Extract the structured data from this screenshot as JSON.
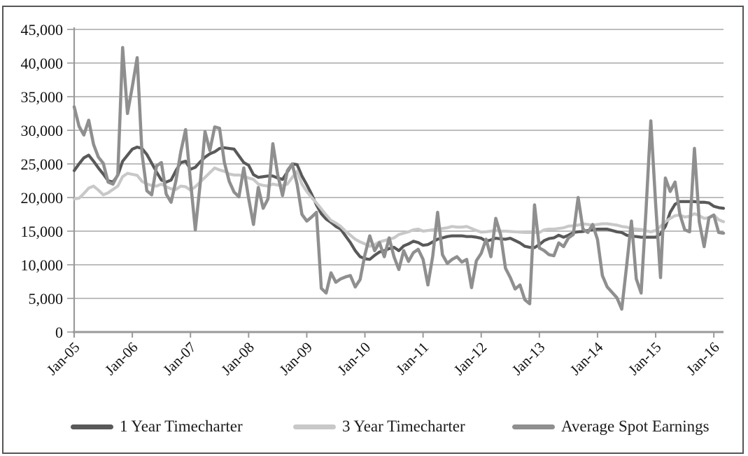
{
  "chart_data": {
    "type": "line",
    "grid": true,
    "legend_position": "bottom",
    "ylim": [
      0,
      45000
    ],
    "ytick_step": 5000,
    "ytick_labels": [
      "0",
      "5,000",
      "10,000",
      "15,000",
      "20,000",
      "25,000",
      "30,000",
      "35,000",
      "40,000",
      "45,000"
    ],
    "x_start": "Jan-05",
    "x_frequency": "monthly",
    "n_points": 135,
    "x_tick_labels": [
      "Jan-05",
      "Jan-06",
      "Jan-07",
      "Jan-08",
      "Jan-09",
      "Jan-10",
      "Jan-11",
      "Jan-12",
      "Jan-13",
      "Jan-14",
      "Jan-15",
      "Jan-16"
    ],
    "x_tick_indices": [
      0,
      12,
      24,
      36,
      48,
      60,
      72,
      84,
      96,
      108,
      120,
      132
    ],
    "grid_color": "#a8a8a8",
    "axis_color": "#9a9a9a",
    "text_color": "#111111",
    "series": [
      {
        "name": "1 Year Timecharter",
        "color": "#595959",
        "width": 4.2,
        "values": [
          24000,
          25000,
          25900,
          26300,
          25400,
          24400,
          23500,
          22500,
          22300,
          23300,
          25400,
          26300,
          27200,
          27500,
          27300,
          26400,
          25100,
          23800,
          22600,
          22300,
          22600,
          24000,
          25200,
          25400,
          24200,
          24500,
          25300,
          26000,
          26500,
          26800,
          27300,
          27400,
          27300,
          27200,
          26200,
          25200,
          24800,
          23400,
          23000,
          23100,
          23200,
          23200,
          22900,
          22700,
          23800,
          25000,
          24900,
          23200,
          21900,
          20500,
          18900,
          17600,
          16800,
          16300,
          15700,
          15300,
          14300,
          13300,
          12100,
          11200,
          10900,
          10800,
          11400,
          11900,
          12100,
          12400,
          12600,
          12100,
          12800,
          13100,
          13500,
          13300,
          12900,
          13000,
          13400,
          13800,
          14000,
          14200,
          14300,
          14300,
          14300,
          14200,
          14200,
          14100,
          13950,
          13500,
          13700,
          13950,
          13850,
          13800,
          13950,
          13600,
          13250,
          12750,
          12600,
          12550,
          13000,
          13600,
          13900,
          14000,
          14400,
          14100,
          14400,
          14800,
          14900,
          14950,
          15100,
          15200,
          15300,
          15300,
          15300,
          15100,
          14900,
          14800,
          14400,
          14250,
          14200,
          14100,
          14100,
          14100,
          14100,
          14600,
          15700,
          17800,
          19000,
          19400,
          19400,
          19400,
          19400,
          19300,
          19300,
          19200,
          18700,
          18500,
          18400
        ]
      },
      {
        "name": "3 Year Timecharter",
        "color": "#c8c8c8",
        "width": 4.2,
        "values": [
          19800,
          19900,
          20600,
          21400,
          21700,
          21100,
          20400,
          20700,
          21200,
          21700,
          23100,
          23600,
          23450,
          23300,
          22400,
          22000,
          21800,
          21700,
          22000,
          21600,
          21300,
          21200,
          21700,
          21600,
          21100,
          21600,
          22300,
          23000,
          23700,
          24400,
          24100,
          23900,
          23500,
          23350,
          23350,
          23200,
          22900,
          22700,
          22000,
          21800,
          21700,
          22000,
          21850,
          21800,
          22000,
          23000,
          23900,
          22000,
          20900,
          20000,
          19200,
          18300,
          17400,
          16600,
          16200,
          15700,
          15000,
          14400,
          13800,
          13400,
          13100,
          12750,
          13000,
          13400,
          13600,
          13800,
          14000,
          14500,
          14700,
          14900,
          15200,
          15300,
          15000,
          15100,
          15200,
          15300,
          15400,
          15500,
          15700,
          15600,
          15600,
          15700,
          15400,
          15100,
          14850,
          14900,
          15000,
          15100,
          15000,
          15000,
          14950,
          14900,
          14850,
          14800,
          14800,
          14800,
          14800,
          15200,
          15300,
          15300,
          15400,
          15500,
          15750,
          15800,
          15900,
          16100,
          16000,
          15900,
          16000,
          16100,
          16100,
          16000,
          15900,
          15700,
          15600,
          15400,
          15300,
          15250,
          15050,
          14900,
          15100,
          15700,
          16400,
          16900,
          17300,
          17400,
          17100,
          17200,
          17600,
          17300,
          16900,
          17000,
          17400,
          16700,
          16400
        ]
      },
      {
        "name": "Average Spot Earnings",
        "color": "#8f8f8f",
        "width": 4.5,
        "values": [
          33500,
          30600,
          29300,
          31500,
          27900,
          26000,
          25100,
          22300,
          22000,
          23400,
          42300,
          32500,
          36500,
          40800,
          26500,
          21000,
          20400,
          24700,
          25200,
          20500,
          19300,
          22500,
          26800,
          30100,
          22500,
          15200,
          22000,
          29800,
          27000,
          30500,
          30300,
          25200,
          22400,
          20800,
          20100,
          24400,
          19900,
          16000,
          21500,
          18400,
          19800,
          28000,
          23400,
          20300,
          24000,
          25000,
          22000,
          17500,
          16500,
          17100,
          17800,
          6500,
          5800,
          8800,
          7400,
          7900,
          8200,
          8400,
          6700,
          7800,
          11500,
          14300,
          12100,
          13300,
          11200,
          14000,
          11200,
          9300,
          12100,
          10500,
          11800,
          12300,
          10800,
          7000,
          11300,
          17800,
          11500,
          10200,
          10800,
          11200,
          10400,
          10800,
          6600,
          10600,
          11700,
          13800,
          11200,
          16900,
          14500,
          9500,
          8100,
          6400,
          7000,
          4800,
          4200,
          18900,
          12500,
          12100,
          11500,
          11350,
          13250,
          12700,
          14000,
          14500,
          20000,
          15300,
          14800,
          16000,
          13750,
          8400,
          6700,
          5900,
          5100,
          3400,
          9800,
          16500,
          7900,
          5800,
          18000,
          31400,
          19000,
          8100,
          22900,
          20900,
          22300,
          17500,
          15200,
          14900,
          27300,
          16400,
          12700,
          17000,
          17400,
          14800,
          14700
        ]
      }
    ]
  },
  "legend": {
    "items": [
      {
        "label": "1 Year Timecharter",
        "color": "#595959"
      },
      {
        "label": "3 Year Timecharter",
        "color": "#c8c8c8"
      },
      {
        "label": "Average Spot Earnings",
        "color": "#8f8f8f"
      }
    ]
  }
}
